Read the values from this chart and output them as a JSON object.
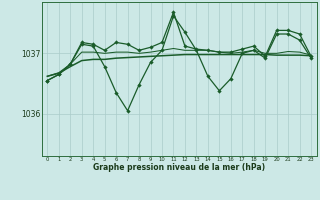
{
  "xlabel": "Graphe pression niveau de la mer (hPa)",
  "bg_color": "#cce8e6",
  "grid_color": "#aaccca",
  "line_color": "#1a5c2a",
  "ylim": [
    1035.3,
    1037.85
  ],
  "xlim": [
    -0.5,
    23.5
  ],
  "yticks": [
    1036,
    1037
  ],
  "xticks": [
    0,
    1,
    2,
    3,
    4,
    5,
    6,
    7,
    8,
    9,
    10,
    11,
    12,
    13,
    14,
    15,
    16,
    17,
    18,
    19,
    20,
    21,
    22,
    23
  ],
  "main_line": [
    1036.55,
    1036.65,
    1036.82,
    1037.15,
    1037.12,
    1036.78,
    1036.35,
    1036.05,
    1036.48,
    1036.85,
    1037.05,
    1037.62,
    1037.35,
    1037.05,
    1036.62,
    1036.38,
    1036.58,
    1037.0,
    1037.05,
    1036.92,
    1037.32,
    1037.32,
    1037.22,
    1036.92
  ],
  "top_line": [
    1036.55,
    1036.65,
    1036.82,
    1037.18,
    1037.15,
    1037.05,
    1037.18,
    1037.15,
    1037.05,
    1037.1,
    1037.18,
    1037.68,
    1037.12,
    1037.07,
    1037.05,
    1037.02,
    1037.02,
    1037.07,
    1037.12,
    1036.95,
    1037.38,
    1037.38,
    1037.32,
    1036.95
  ],
  "flat_line": [
    1036.62,
    1036.67,
    1036.78,
    1036.88,
    1036.9,
    1036.9,
    1036.92,
    1036.93,
    1036.94,
    1036.95,
    1036.96,
    1036.97,
    1036.98,
    1036.98,
    1036.98,
    1036.98,
    1036.98,
    1036.98,
    1036.98,
    1036.98,
    1036.97,
    1036.97,
    1036.97,
    1036.96
  ],
  "mid_line": [
    1036.62,
    1036.68,
    1036.82,
    1037.02,
    1037.02,
    1037.0,
    1037.02,
    1037.02,
    1037.0,
    1037.02,
    1037.05,
    1037.08,
    1037.05,
    1037.05,
    1037.05,
    1037.02,
    1037.0,
    1037.02,
    1037.05,
    1037.0,
    1037.0,
    1037.03,
    1037.02,
    1036.97
  ]
}
